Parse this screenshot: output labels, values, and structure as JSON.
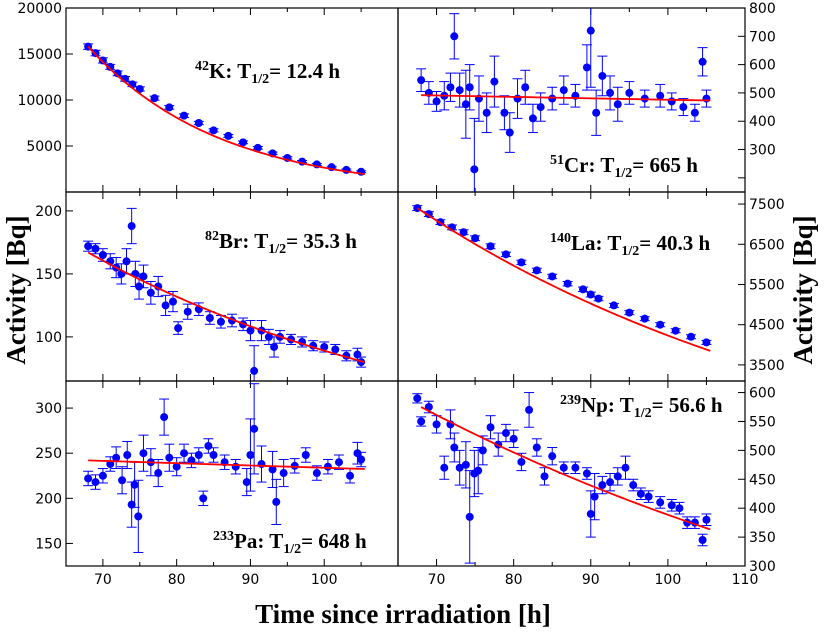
{
  "figure": {
    "xlabel": "Time since irradiation [h]",
    "ylabel_left": "Activity [Bq]",
    "ylabel_right": "Activity [Bq]"
  },
  "colors": {
    "points": "#0000ff",
    "errorbars": "#0000ff",
    "fit": "#ff0000",
    "frame": "#000000"
  },
  "chart_data": [
    {
      "id": "K42",
      "type": "scatter",
      "grid": false,
      "yaxis_side": "left",
      "label": {
        "mass": "42",
        "element": "K",
        "half_life": "12.4 h"
      },
      "xlim": [
        65,
        110
      ],
      "ylim": [
        0,
        20000
      ],
      "yticks": [
        5000,
        10000,
        15000,
        20000
      ],
      "x": [
        68.0,
        69.0,
        70.0,
        71.0,
        72.0,
        73.0,
        74.0,
        75.0,
        77.0,
        79.0,
        81.0,
        83.0,
        85.0,
        87.0,
        89.0,
        91.0,
        93.0,
        95.0,
        97.0,
        99.0,
        101.0,
        103.0,
        105.0
      ],
      "y": [
        15800,
        15100,
        14300,
        13600,
        12900,
        12300,
        11700,
        11200,
        10200,
        9200,
        8300,
        7500,
        6700,
        6100,
        5400,
        4800,
        4200,
        3700,
        3300,
        3000,
        2700,
        2400,
        2200
      ],
      "err": [
        300,
        300,
        280,
        270,
        260,
        250,
        240,
        230,
        220,
        200,
        190,
        180,
        170,
        160,
        150,
        140,
        140,
        130,
        120,
        110,
        100,
        100,
        100
      ],
      "fit": {
        "type": "exp",
        "A": 15800,
        "x0": 68,
        "half_life": 12.4,
        "x_range": [
          68,
          105.5
        ]
      }
    },
    {
      "id": "Cr51",
      "type": "scatter",
      "grid": false,
      "yaxis_side": "right",
      "label": {
        "mass": "51",
        "element": "Cr",
        "half_life": "665 h"
      },
      "xlim": [
        65,
        110
      ],
      "ylim": [
        150,
        800
      ],
      "yticks": [
        200,
        300,
        400,
        500,
        600,
        700,
        800
      ],
      "ytick_labels": [
        "",
        "300",
        "400",
        "500",
        "600",
        "700",
        "800"
      ],
      "x": [
        68.0,
        69.0,
        70.0,
        71.0,
        71.8,
        72.3,
        73.0,
        73.8,
        74.3,
        74.9,
        75.5,
        76.5,
        77.5,
        78.8,
        79.5,
        80.5,
        81.5,
        82.5,
        83.5,
        85.0,
        86.5,
        88.0,
        89.5,
        90.0,
        90.7,
        91.5,
        92.5,
        93.5,
        95.0,
        97.0,
        99.0,
        100.5,
        102.0,
        103.5,
        104.5,
        105.0
      ],
      "y": [
        545,
        500,
        470,
        490,
        520,
        700,
        510,
        460,
        520,
        230,
        480,
        430,
        540,
        430,
        360,
        480,
        520,
        410,
        450,
        480,
        510,
        490,
        590,
        720,
        430,
        560,
        500,
        460,
        500,
        480,
        490,
        470,
        450,
        430,
        610,
        480
      ],
      "err": [
        40,
        40,
        35,
        50,
        50,
        80,
        60,
        120,
        80,
        180,
        80,
        70,
        90,
        60,
        70,
        70,
        60,
        50,
        50,
        40,
        50,
        40,
        80,
        200,
        80,
        70,
        60,
        60,
        40,
        30,
        40,
        30,
        30,
        30,
        50,
        30
      ],
      "fit": {
        "type": "exp",
        "A": 492,
        "x0": 68,
        "half_life": 665,
        "x_range": [
          68,
          105.5
        ]
      }
    },
    {
      "id": "Br82",
      "type": "scatter",
      "grid": false,
      "yaxis_side": "left",
      "label": {
        "mass": "82",
        "element": "Br",
        "half_life": "35.3 h"
      },
      "xlim": [
        65,
        110
      ],
      "ylim": [
        65,
        215
      ],
      "yticks": [
        100,
        150,
        200
      ],
      "x": [
        68.0,
        69.0,
        70.0,
        71.0,
        71.8,
        72.5,
        73.2,
        73.9,
        74.4,
        74.9,
        75.5,
        76.5,
        77.5,
        78.5,
        79.5,
        80.2,
        81.5,
        83.0,
        84.5,
        86.0,
        87.5,
        89.0,
        90.0,
        90.5,
        91.5,
        92.5,
        93.2,
        94.0,
        95.5,
        97.0,
        98.5,
        100.0,
        101.5,
        103.0,
        104.5,
        105.0
      ],
      "y": [
        172,
        170,
        165,
        160,
        155,
        150,
        160,
        188,
        150,
        140,
        148,
        135,
        140,
        125,
        128,
        107,
        120,
        122,
        115,
        112,
        113,
        110,
        105,
        73,
        105,
        100,
        92,
        100,
        98,
        96,
        93,
        92,
        90,
        85,
        86,
        80
      ],
      "err": [
        4,
        4,
        5,
        6,
        8,
        8,
        10,
        14,
        10,
        10,
        9,
        9,
        8,
        8,
        8,
        5,
        6,
        5,
        5,
        5,
        5,
        5,
        8,
        20,
        8,
        6,
        8,
        5,
        4,
        4,
        4,
        4,
        4,
        4,
        5,
        4
      ],
      "fit": {
        "type": "exp",
        "A": 167,
        "x0": 68,
        "half_life": 35.3,
        "x_range": [
          68,
          105.5
        ]
      }
    },
    {
      "id": "La140",
      "type": "scatter",
      "grid": false,
      "yaxis_side": "right",
      "label": {
        "mass": "140",
        "element": "La",
        "half_life": "40.3 h"
      },
      "xlim": [
        65,
        110
      ],
      "ylim": [
        3100,
        7800
      ],
      "yticks": [
        3500,
        4500,
        5500,
        6500,
        7500
      ],
      "x": [
        67.5,
        69.0,
        70.5,
        72.0,
        73.5,
        75.0,
        77.0,
        79.0,
        81.0,
        83.0,
        85.0,
        87.0,
        89.0,
        90.0,
        91.0,
        93.0,
        95.0,
        97.0,
        99.0,
        101.0,
        103.0,
        105.0
      ],
      "y": [
        7400,
        7250,
        7050,
        6920,
        6800,
        6650,
        6450,
        6250,
        6050,
        5850,
        5700,
        5520,
        5380,
        5250,
        5150,
        4980,
        4800,
        4650,
        4500,
        4350,
        4200,
        4060
      ],
      "err": [
        60,
        60,
        60,
        60,
        60,
        60,
        60,
        55,
        55,
        55,
        55,
        55,
        55,
        60,
        55,
        50,
        50,
        50,
        50,
        50,
        50,
        50
      ],
      "fit": {
        "type": "exp",
        "A": 7400,
        "x0": 67.5,
        "half_life": 40.3,
        "x_range": [
          67.5,
          105.5
        ]
      }
    },
    {
      "id": "Pa233",
      "type": "scatter",
      "grid": false,
      "yaxis_side": "left",
      "label": {
        "mass": "233",
        "element": "Pa",
        "half_life": "648 h"
      },
      "xlim": [
        65,
        110
      ],
      "ylim": [
        125,
        330
      ],
      "yticks": [
        150,
        200,
        250,
        300
      ],
      "x": [
        68.0,
        69.0,
        70.0,
        71.0,
        71.8,
        72.6,
        73.3,
        73.9,
        74.3,
        74.8,
        75.5,
        76.5,
        77.5,
        78.3,
        79.0,
        80.0,
        81.0,
        82.0,
        83.0,
        83.6,
        84.3,
        85.0,
        86.5,
        88.0,
        89.5,
        90.0,
        90.5,
        91.5,
        93.0,
        93.5,
        94.5,
        96.0,
        97.5,
        99.0,
        100.5,
        102.0,
        103.5,
        104.5,
        105.0
      ],
      "y": [
        222,
        218,
        225,
        238,
        245,
        220,
        248,
        193,
        215,
        180,
        250,
        240,
        228,
        290,
        245,
        235,
        250,
        242,
        248,
        200,
        258,
        248,
        240,
        235,
        218,
        248,
        277,
        238,
        232,
        196,
        228,
        236,
        248,
        228,
        235,
        240,
        225,
        250,
        243
      ],
      "err": [
        8,
        8,
        8,
        8,
        12,
        15,
        15,
        25,
        25,
        40,
        20,
        15,
        15,
        20,
        15,
        10,
        10,
        8,
        8,
        8,
        8,
        8,
        8,
        8,
        15,
        40,
        50,
        20,
        20,
        25,
        15,
        8,
        8,
        8,
        8,
        8,
        8,
        12,
        8
      ],
      "fit": {
        "type": "exp",
        "A": 242,
        "x0": 68,
        "half_life": 648,
        "x_range": [
          68,
          105.5
        ]
      }
    },
    {
      "id": "Np239",
      "type": "scatter",
      "grid": false,
      "yaxis_side": "right",
      "label": {
        "mass": "239",
        "element": "Np",
        "half_life": "56.6 h"
      },
      "xlim": [
        65,
        110
      ],
      "ylim": [
        300,
        620
      ],
      "yticks": [
        300,
        350,
        400,
        450,
        500,
        550,
        600
      ],
      "x": [
        67.5,
        68.0,
        69.0,
        70.0,
        71.0,
        71.8,
        72.3,
        73.0,
        73.8,
        74.3,
        74.9,
        75.4,
        76.0,
        77.0,
        78.0,
        79.0,
        80.0,
        81.0,
        82.0,
        83.0,
        84.0,
        85.0,
        86.5,
        88.0,
        89.5,
        90.0,
        90.5,
        91.5,
        92.5,
        93.5,
        94.5,
        95.5,
        96.5,
        97.5,
        99.0,
        100.5,
        101.5,
        102.5,
        103.5,
        104.5,
        105.0
      ],
      "y": [
        590,
        550,
        575,
        545,
        470,
        545,
        505,
        470,
        475,
        385,
        460,
        465,
        500,
        540,
        510,
        530,
        520,
        480,
        570,
        505,
        455,
        490,
        470,
        470,
        460,
        390,
        420,
        440,
        445,
        455,
        470,
        440,
        425,
        420,
        410,
        405,
        400,
        375,
        375,
        345,
        380
      ],
      "err": [
        8,
        8,
        10,
        15,
        20,
        25,
        25,
        30,
        40,
        80,
        40,
        40,
        25,
        20,
        20,
        15,
        15,
        15,
        30,
        15,
        15,
        15,
        10,
        10,
        10,
        40,
        40,
        15,
        15,
        15,
        20,
        10,
        10,
        10,
        10,
        10,
        10,
        10,
        10,
        10,
        10
      ],
      "fit": {
        "type": "exp",
        "A": 575,
        "x0": 68,
        "half_life": 56.6,
        "x_range": [
          68,
          105.5
        ]
      }
    }
  ],
  "xaxis": {
    "ticks": [
      70,
      80,
      90,
      100,
      110
    ]
  }
}
